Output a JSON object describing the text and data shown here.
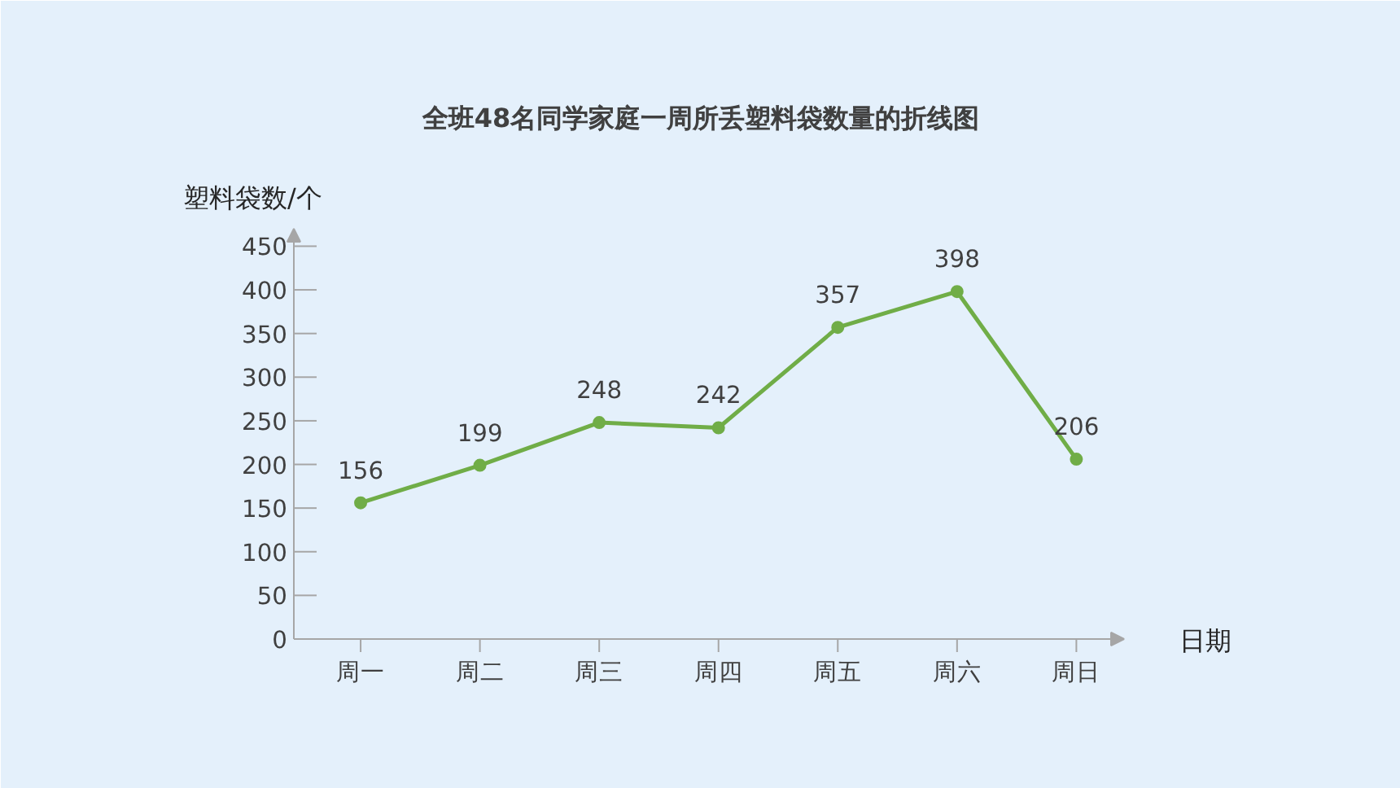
{
  "chart_data": {
    "type": "line",
    "title": "全班48名同学家庭一周所丢塑料袋数量的折线图",
    "xlabel": "日期",
    "ylabel": "塑料袋数/个",
    "categories": [
      "周一",
      "周二",
      "周三",
      "周四",
      "周五",
      "周六",
      "周日"
    ],
    "series": [
      {
        "color": "#70ad47",
        "values": [
          156,
          199,
          248,
          242,
          357,
          398,
          206
        ]
      }
    ],
    "ylim": [
      0,
      470
    ],
    "yticks": [
      0,
      50,
      100,
      150,
      200,
      250,
      300,
      350,
      400,
      450
    ],
    "data_labels": true,
    "grid": false,
    "marker": "circle",
    "line_style": "solid"
  }
}
